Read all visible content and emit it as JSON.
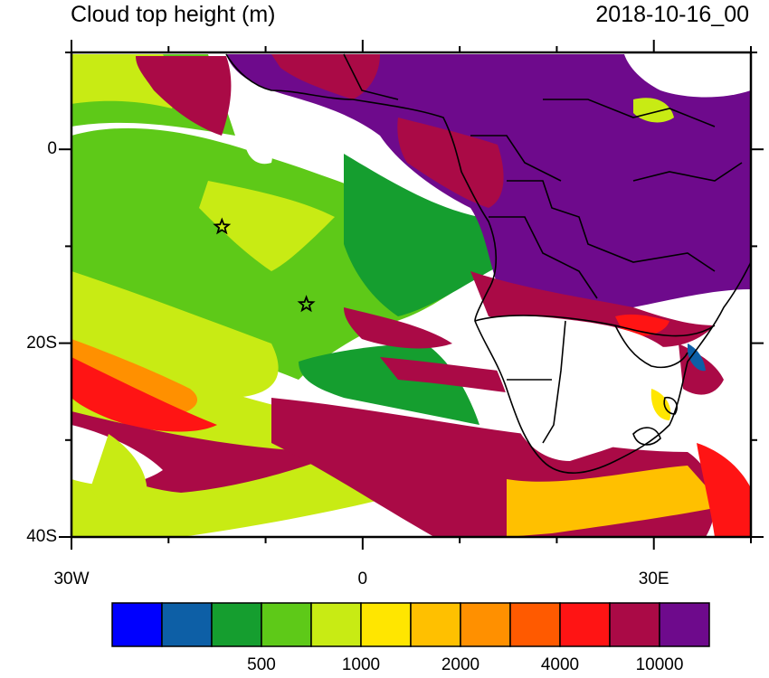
{
  "title": "Cloud top height (m)",
  "timestamp": "2018-10-16_00",
  "map": {
    "lat_range": [
      -40,
      10
    ],
    "lon_range": [
      -30,
      40
    ],
    "lat_tick_labels": [
      {
        "lat": 0,
        "label": "0"
      },
      {
        "lat": -20,
        "label": "20S"
      },
      {
        "lat": -40,
        "label": "40S"
      }
    ],
    "lon_tick_labels": [
      {
        "lon": -30,
        "label": "30W"
      },
      {
        "lon": 0,
        "label": "0"
      },
      {
        "lon": 30,
        "label": "30E"
      }
    ],
    "markers": [
      {
        "type": "star",
        "lon": -14.5,
        "lat": -8
      },
      {
        "type": "star",
        "lon": -5.8,
        "lat": -16
      }
    ]
  },
  "colorbar": {
    "colors": [
      "#0000ff",
      "#0d5fa6",
      "#159e2f",
      "#5ec918",
      "#c8eb14",
      "#ffe600",
      "#ffc000",
      "#ff9000",
      "#ff5a00",
      "#ff1414",
      "#aa0a46",
      "#6e0a8c"
    ],
    "labels": [
      {
        "after_box": 2,
        "text": "500"
      },
      {
        "after_box": 4,
        "text": "1000"
      },
      {
        "after_box": 6,
        "text": "2000"
      },
      {
        "after_box": 8,
        "text": "4000"
      },
      {
        "after_box": 10,
        "text": "10000"
      }
    ]
  }
}
